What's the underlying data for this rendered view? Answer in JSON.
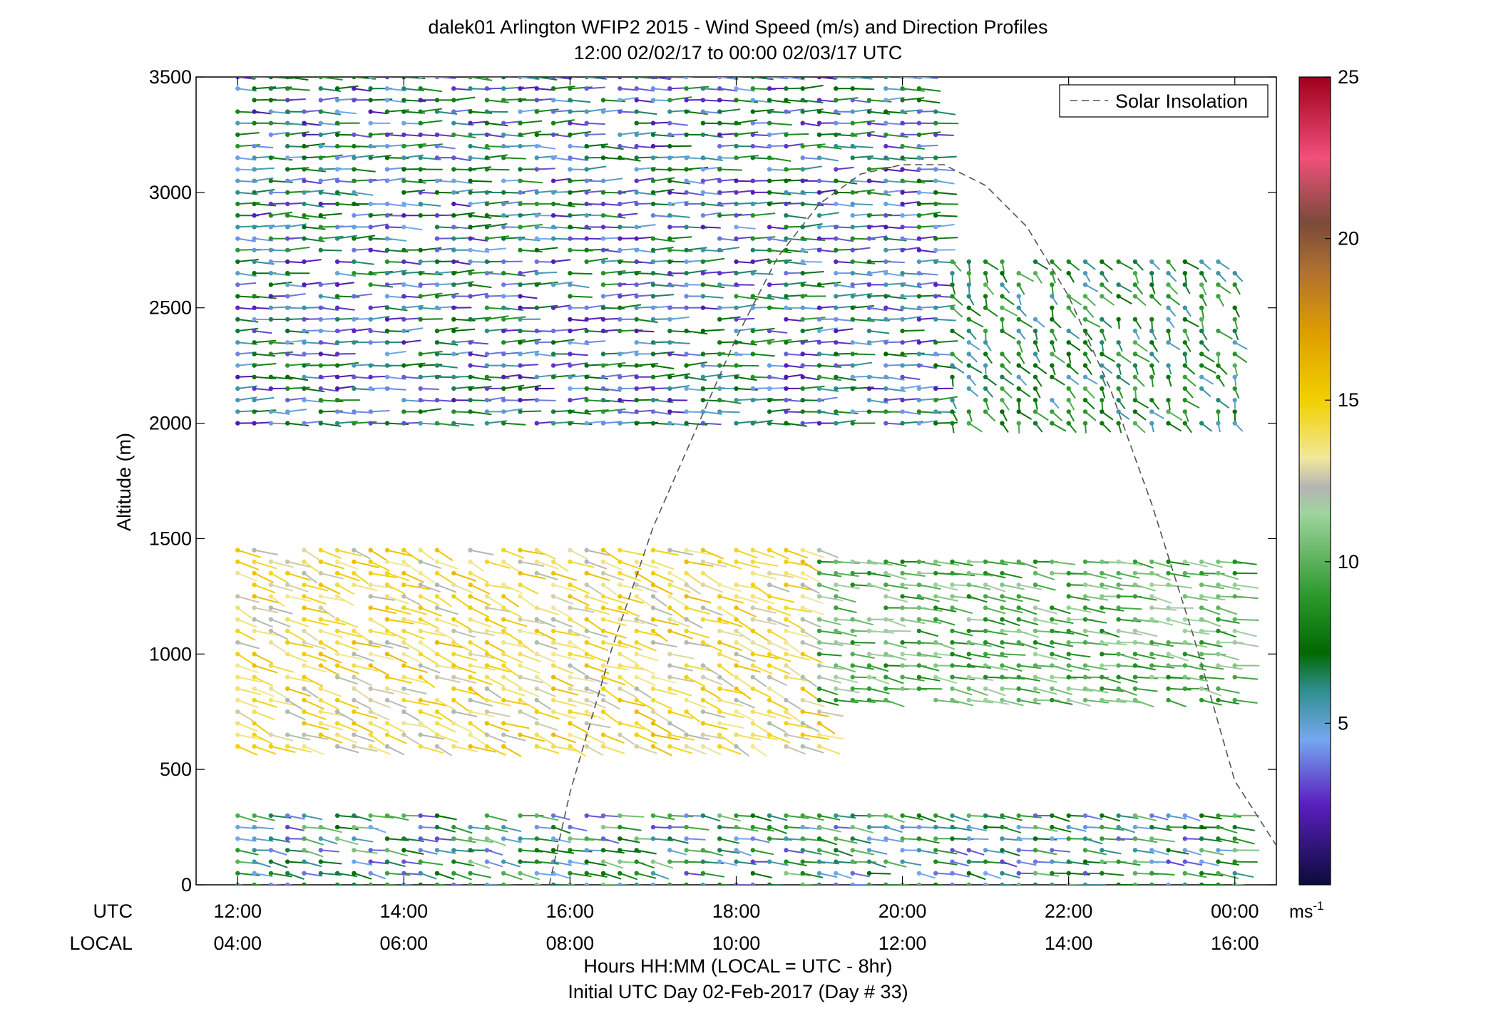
{
  "chart_data": {
    "type": "scatter",
    "title": "dalek01 Arlington WFIP2 2015 - Wind Speed (m/s) and Direction Profiles",
    "subtitle": "12:00 02/02/17 to 00:00 02/03/17  UTC",
    "ylabel": "Altitude (m)",
    "xlabel": "Hours HH:MM  (LOCAL = UTC - 8hr)",
    "xlabel2": "Initial UTC Day 02-Feb-2017 (Day # 33)",
    "xlim": [
      11.5,
      24.5
    ],
    "ylim": [
      0,
      3500
    ],
    "yticks": [
      0,
      500,
      1000,
      1500,
      2000,
      2500,
      3000,
      3500
    ],
    "xticks": [
      12,
      14,
      16,
      18,
      20,
      22,
      24
    ],
    "utc_label": "UTC",
    "local_label": "LOCAL",
    "utc_tick_labels": [
      "12:00",
      "14:00",
      "16:00",
      "18:00",
      "20:00",
      "22:00",
      "00:00"
    ],
    "local_tick_labels": [
      "04:00",
      "06:00",
      "08:00",
      "10:00",
      "12:00",
      "14:00",
      "16:00"
    ],
    "legend": {
      "label": "Solar Insolation",
      "placement": "top-right"
    },
    "colorbar": {
      "ticks": [
        5,
        10,
        15,
        20,
        25
      ],
      "tick_labels": [
        "5",
        "10",
        "15",
        "20",
        "25"
      ],
      "range": [
        0,
        25
      ],
      "unit_base": "ms",
      "unit_exp": "-1",
      "stops": [
        {
          "v": 0,
          "c": "#0b0b3b"
        },
        {
          "v": 2.5,
          "c": "#5a1fbf"
        },
        {
          "v": 4.5,
          "c": "#74a8f0"
        },
        {
          "v": 6.0,
          "c": "#2f8f8f"
        },
        {
          "v": 7.2,
          "c": "#006a00"
        },
        {
          "v": 9.0,
          "c": "#2e9a2e"
        },
        {
          "v": 11.5,
          "c": "#9fd49f"
        },
        {
          "v": 12.3,
          "c": "#b4b4b4"
        },
        {
          "v": 13.2,
          "c": "#f2e89a"
        },
        {
          "v": 15.0,
          "c": "#f2d000"
        },
        {
          "v": 17.0,
          "c": "#e0a000"
        },
        {
          "v": 19.0,
          "c": "#b07030"
        },
        {
          "v": 20.5,
          "c": "#7a4a3a"
        },
        {
          "v": 22.5,
          "c": "#f0507a"
        },
        {
          "v": 25.0,
          "c": "#a0001a"
        }
      ]
    },
    "solar_insolation_curve": {
      "color": "#555555",
      "x": [
        15.75,
        16.0,
        16.5,
        17.0,
        17.5,
        18.0,
        18.5,
        19.0,
        19.5,
        20.0,
        20.5,
        21.0,
        21.5,
        22.0,
        22.5,
        23.0,
        23.5,
        24.0,
        24.5
      ],
      "y": [
        0,
        400,
        1020,
        1550,
        1960,
        2370,
        2720,
        2950,
        3080,
        3120,
        3120,
        3030,
        2850,
        2550,
        2150,
        1650,
        1080,
        450,
        170
      ]
    },
    "series": [
      {
        "regime": "near-surface layer, 0-300 m",
        "x_range": [
          12.0,
          24.0
        ],
        "y_range": [
          0,
          300
        ],
        "speed_range": [
          3,
          11
        ],
        "direction_deg": 250
      },
      {
        "regime": "morning low-level jet, 600-1450 m",
        "x_range": [
          12.0,
          19.0
        ],
        "y_range": [
          600,
          1450
        ],
        "speed_range": [
          12,
          16
        ],
        "direction_deg": 230
      },
      {
        "regime": "midday mid-level flow, 800-1400 m",
        "x_range": [
          19.0,
          24.0
        ],
        "y_range": [
          800,
          1400
        ],
        "speed_range": [
          8,
          12
        ],
        "direction_deg": 250
      },
      {
        "regime": "upper westerlies, 2000-3500 m",
        "x_range": [
          12.0,
          20.5
        ],
        "y_range": [
          2000,
          3500
        ],
        "speed_range": [
          2,
          9
        ],
        "direction_deg": 270
      },
      {
        "regime": "afternoon northerly flow, 2000-2700 m",
        "x_range": [
          20.5,
          24.0
        ],
        "y_range": [
          2000,
          2700
        ],
        "speed_range": [
          5,
          10
        ],
        "direction_deg": 200
      }
    ]
  }
}
